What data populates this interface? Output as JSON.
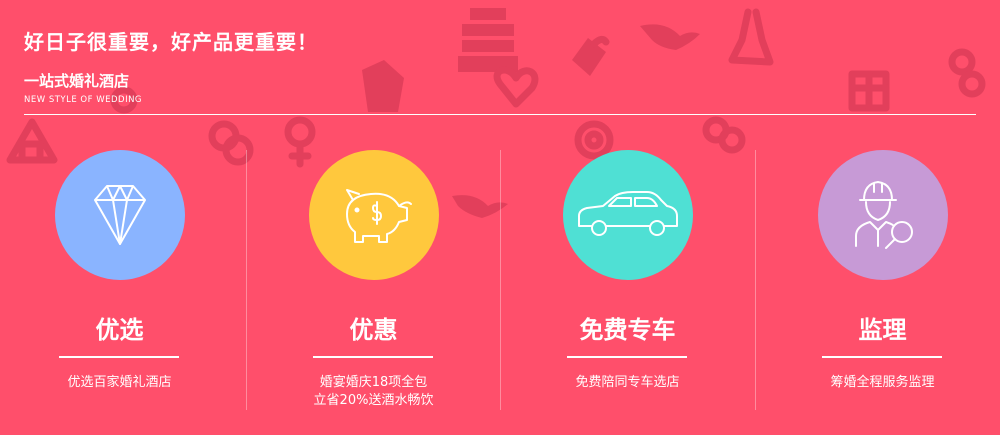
{
  "header": {
    "headline": "好日子很重要，好产品更重要！",
    "subtitle": "一站式婚礼酒店",
    "subtitle_en": "NEW STYLE OF WEDDING"
  },
  "features": [
    {
      "title": "优选",
      "desc_lines": [
        "优选百家婚礼酒店"
      ],
      "icon": "diamond-icon",
      "color": "#8ab4ff"
    },
    {
      "title": "优惠",
      "desc_lines": [
        "婚宴婚庆18项全包",
        "立省20%送酒水畅饮"
      ],
      "icon": "piggy-bank-icon",
      "color": "#ffc83d"
    },
    {
      "title": "免费专车",
      "desc_lines": [
        "免费陪同专车选店"
      ],
      "icon": "car-icon",
      "color": "#4fe0d4"
    },
    {
      "title": "监理",
      "desc_lines": [
        "筹婚全程服务监理"
      ],
      "icon": "supervisor-icon",
      "color": "#c79ad6"
    }
  ],
  "background_icons": [
    "cake-icon",
    "dress-icon",
    "bird-icon",
    "heart-icon",
    "bell-icon",
    "rings-icon",
    "gift-icon",
    "house-icon",
    "suit-icon",
    "flower-icon",
    "gender-icon"
  ]
}
